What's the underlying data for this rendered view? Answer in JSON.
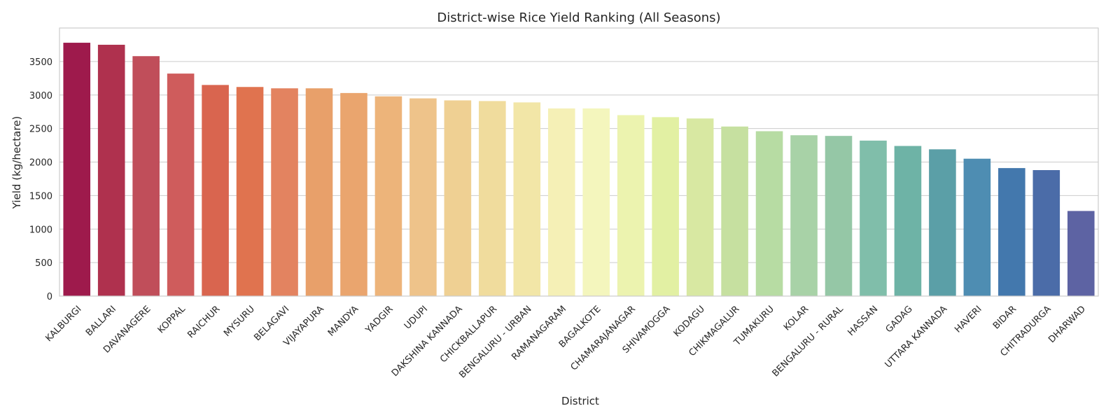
{
  "chart_data": {
    "type": "bar",
    "title": "District-wise Rice Yield Ranking (All Seasons)",
    "xlabel": "District",
    "ylabel": "Yield (kg/hectare)",
    "ylim": [
      0,
      4000
    ],
    "yticks": [
      0,
      500,
      1000,
      1500,
      2000,
      2500,
      3000,
      3500
    ],
    "grid": "horizontal",
    "palette": "Spectral",
    "categories": [
      "KALBURGI",
      "BALLARI",
      "DAVANAGERE",
      "KOPPAL",
      "RAICHUR",
      "MYSURU",
      "BELAGAVI",
      "VIJAYAPURA",
      "MANDYA",
      "YADGIR",
      "UDUPI",
      "DAKSHINA KANNADA",
      "CHICKBALLAPUR",
      "BENGALURU - URBAN",
      "RAMANAGARAM",
      "BAGALKOTE",
      "CHAMARAJANAGAR",
      "SHIVAMOGGA",
      "KODAGU",
      "CHIKMAGALUR",
      "TUMAKURU",
      "KOLAR",
      "BENGALURU - RURAL",
      "HASSAN",
      "GADAG",
      "UTTARA KANNADA",
      "HAVERI",
      "BIDAR",
      "CHITRADURGA",
      "DHARWAD"
    ],
    "values": [
      3780,
      3750,
      3580,
      3320,
      3150,
      3120,
      3100,
      3100,
      3030,
      2980,
      2950,
      2920,
      2910,
      2890,
      2800,
      2800,
      2700,
      2670,
      2650,
      2530,
      2460,
      2400,
      2390,
      2320,
      2240,
      2190,
      2050,
      1910,
      1880,
      1270
    ],
    "colors": [
      "#9e1a4c",
      "#af314e",
      "#c04e5a",
      "#cf5c5c",
      "#d9654f",
      "#e0734f",
      "#e38360",
      "#e8a06a",
      "#eaa56e",
      "#edb47a",
      "#eec38a",
      "#efd093",
      "#f0dc9d",
      "#f2e6a7",
      "#f5f0b6",
      "#f4f6bd",
      "#ecf3af",
      "#e2f0a3",
      "#d8e8a2",
      "#c6e0a0",
      "#b7dca3",
      "#a8d2a7",
      "#95c7a6",
      "#80beaa",
      "#6eb3a6",
      "#5b9fa7",
      "#4e8db2",
      "#4378ad",
      "#4b6ca8",
      "#5d63a3"
    ]
  }
}
